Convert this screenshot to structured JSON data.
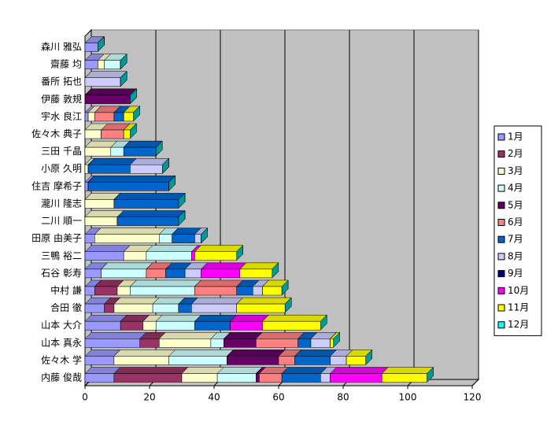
{
  "chart_data": {
    "type": "bar3d_stacked_horizontal",
    "categories": [
      "森川 雅弘",
      "齋藤 均",
      "番所 拓也",
      "伊藤 敦規",
      "宇水 良江",
      "佐々木 典子",
      "三田 千晶",
      "小原 久明",
      "住吉 摩希子",
      "瀧川 隆志",
      "二川 順一",
      "田原 由美子",
      "三鴨 裕二",
      "石谷 彰寿",
      "中村 謙",
      "合田 徹",
      "山本 大介",
      "山本 真永",
      "佐々木 学",
      "内藤 俊哉"
    ],
    "series": [
      {
        "name": "1月",
        "color": "#9999FF",
        "values": [
          4,
          4,
          0,
          0,
          1,
          0,
          0,
          0,
          1,
          0,
          0,
          3,
          12,
          5,
          3,
          6,
          11,
          17,
          9,
          9
        ]
      },
      {
        "name": "2月",
        "color": "#993366",
        "values": [
          0,
          0,
          0,
          0,
          0,
          0,
          0,
          0,
          0,
          0,
          0,
          0,
          0,
          0,
          7,
          3,
          7,
          6,
          0,
          21
        ]
      },
      {
        "name": "3月",
        "color": "#FFFFCC",
        "values": [
          0,
          2,
          0,
          0,
          2,
          5,
          8,
          1,
          0,
          9,
          10,
          20,
          7,
          0,
          4,
          12,
          4,
          16,
          17,
          11
        ]
      },
      {
        "name": "4月",
        "color": "#CCFFFF",
        "values": [
          0,
          5,
          0,
          0,
          0,
          0,
          4,
          0,
          0,
          0,
          0,
          4,
          14,
          14,
          20,
          8,
          12,
          4,
          18,
          12
        ]
      },
      {
        "name": "5月",
        "color": "#660066",
        "values": [
          0,
          0,
          0,
          14,
          0,
          0,
          0,
          0,
          0,
          0,
          0,
          0,
          0,
          0,
          0,
          0,
          0,
          10,
          16,
          1
        ]
      },
      {
        "name": "6月",
        "color": "#FF8080",
        "values": [
          0,
          0,
          0,
          0,
          6,
          7,
          0,
          0,
          0,
          0,
          0,
          0,
          0,
          6,
          13,
          0,
          0,
          13,
          5,
          7
        ]
      },
      {
        "name": "7月",
        "color": "#0066CC",
        "values": [
          0,
          0,
          0,
          0,
          3,
          0,
          10,
          13,
          25,
          20,
          19,
          7,
          0,
          6,
          5,
          4,
          11,
          4,
          11,
          12
        ]
      },
      {
        "name": "8月",
        "color": "#CCCCFF",
        "values": [
          0,
          0,
          11,
          0,
          0,
          0,
          0,
          10,
          0,
          0,
          0,
          2,
          0,
          5,
          3,
          14,
          0,
          6,
          5,
          3
        ]
      },
      {
        "name": "9月",
        "color": "#000080",
        "values": [
          0,
          0,
          0,
          0,
          0,
          0,
          0,
          0,
          0,
          0,
          0,
          0,
          0,
          0,
          0,
          0,
          0,
          0,
          0,
          0
        ]
      },
      {
        "name": "10月",
        "color": "#FF00FF",
        "values": [
          0,
          0,
          0,
          0,
          0,
          0,
          0,
          0,
          0,
          0,
          0,
          0,
          1,
          12,
          0,
          0,
          10,
          0,
          0,
          16
        ]
      },
      {
        "name": "11月",
        "color": "#FFFF00",
        "values": [
          0,
          0,
          0,
          0,
          3,
          2,
          0,
          0,
          0,
          0,
          0,
          0,
          13,
          10,
          6,
          15,
          18,
          1,
          6,
          14
        ]
      },
      {
        "name": "12月",
        "color": "#00FFFF",
        "values": [
          0,
          0,
          0,
          0,
          0,
          0,
          0,
          0,
          0,
          0,
          0,
          0,
          0,
          0,
          0,
          0,
          0,
          0,
          0,
          0
        ]
      }
    ],
    "xlim": [
      0,
      120
    ],
    "xticks": [
      0,
      20,
      40,
      60,
      80,
      100,
      120
    ],
    "grid": true,
    "legend": "right"
  }
}
